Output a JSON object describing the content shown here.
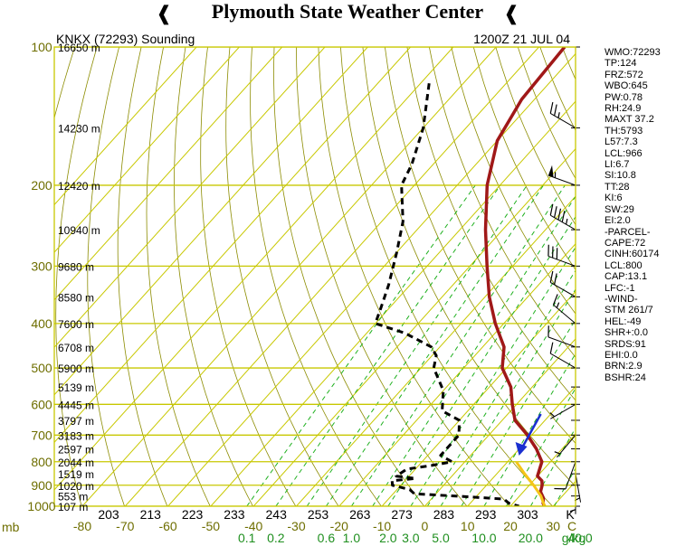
{
  "header": {
    "title": "Plymouth State Weather Center"
  },
  "chart_data": {
    "type": "skew-t",
    "station_label": "KNKX (72293) Sounding",
    "time_label": "1200Z 21 JUL 04",
    "pressure_ticks": [
      100,
      200,
      300,
      400,
      500,
      600,
      700,
      800,
      900,
      1000
    ],
    "pressure_unit": "mb",
    "height_labels": [
      {
        "p": 100,
        "label": "16650 m"
      },
      {
        "p": 150,
        "label": "14230 m"
      },
      {
        "p": 200,
        "label": "12420 m"
      },
      {
        "p": 250,
        "label": "10940 m"
      },
      {
        "p": 300,
        "label": "9680 m"
      },
      {
        "p": 350,
        "label": "8580 m"
      },
      {
        "p": 400,
        "label": "7600 m"
      },
      {
        "p": 450,
        "label": "6708 m"
      },
      {
        "p": 500,
        "label": "5900 m"
      },
      {
        "p": 550,
        "label": "5139 m"
      },
      {
        "p": 600,
        "label": "4445 m"
      },
      {
        "p": 650,
        "label": "3797 m"
      },
      {
        "p": 700,
        "label": "3183 m"
      },
      {
        "p": 750,
        "label": "2597 m"
      },
      {
        "p": 800,
        "label": "2044 m"
      },
      {
        "p": 850,
        "label": "1519 m"
      },
      {
        "p": 900,
        "label": "1020 m"
      },
      {
        "p": 950,
        "label": "553 m"
      },
      {
        "p": 1000,
        "label": "107 m"
      }
    ],
    "theta_labels": [
      "203",
      "213",
      "223",
      "233",
      "243",
      "253",
      "263",
      "273",
      "283",
      "293",
      "303"
    ],
    "theta_corner_label": "K",
    "temp_labels": [
      "-80",
      "-70",
      "-60",
      "-50",
      "-40",
      "-30",
      "-20",
      "-10",
      "0",
      "10",
      "20",
      "30",
      "C"
    ],
    "temp_values": [
      -80,
      -70,
      -60,
      -50,
      -40,
      -30,
      -20,
      -10,
      0,
      10,
      20,
      30
    ],
    "mixing_ratio_labels": [
      "0.1",
      "0.2",
      "0.6",
      "1.0",
      "2.0",
      "3.0",
      "5.0",
      "10.0",
      "20.0",
      "40.0",
      "g/kg"
    ],
    "mixing_ratio_values": [
      0.1,
      0.2,
      0.6,
      1.0,
      2.0,
      3.0,
      5.0,
      10.0,
      20.0,
      40.0
    ],
    "series": [
      {
        "name": "temperature",
        "color": "#a01818",
        "points": [
          [
            100,
            -64
          ],
          [
            130,
            -63
          ],
          [
            160,
            -60
          ],
          [
            200,
            -53
          ],
          [
            250,
            -44
          ],
          [
            300,
            -36
          ],
          [
            350,
            -29
          ],
          [
            400,
            -22
          ],
          [
            450,
            -15
          ],
          [
            500,
            -11
          ],
          [
            550,
            -5
          ],
          [
            600,
            -1
          ],
          [
            650,
            3
          ],
          [
            700,
            9
          ],
          [
            750,
            14
          ],
          [
            800,
            18
          ],
          [
            830,
            19
          ],
          [
            860,
            20
          ],
          [
            880,
            22
          ],
          [
            900,
            23
          ],
          [
            930,
            24
          ],
          [
            960,
            26
          ],
          [
            985,
            27
          ],
          [
            1000,
            28
          ]
        ]
      },
      {
        "name": "dewpoint",
        "color": "#000000",
        "points": [
          [
            120,
            -88
          ],
          [
            150,
            -80
          ],
          [
            180,
            -75
          ],
          [
            200,
            -73
          ],
          [
            240,
            -65
          ],
          [
            280,
            -60
          ],
          [
            330,
            -55
          ],
          [
            370,
            -52
          ],
          [
            400,
            -50
          ],
          [
            420,
            -41
          ],
          [
            450,
            -32
          ],
          [
            470,
            -29
          ],
          [
            500,
            -27
          ],
          [
            560,
            -20
          ],
          [
            620,
            -16
          ],
          [
            650,
            -10
          ],
          [
            700,
            -7
          ],
          [
            745,
            -7
          ],
          [
            775,
            -7
          ],
          [
            800,
            -3
          ],
          [
            815,
            -7
          ],
          [
            830,
            -12
          ],
          [
            860,
            -13
          ],
          [
            870,
            -8
          ],
          [
            880,
            -13
          ],
          [
            900,
            -12
          ],
          [
            920,
            -7
          ],
          [
            940,
            -5
          ],
          [
            950,
            5
          ],
          [
            965,
            17
          ],
          [
            985,
            19
          ],
          [
            1000,
            22
          ]
        ]
      },
      {
        "name": "parcel",
        "color": "#f5c518",
        "points": [
          [
            800,
            12
          ],
          [
            850,
            16.5
          ],
          [
            900,
            21
          ],
          [
            950,
            25
          ],
          [
            1000,
            28
          ]
        ]
      }
    ],
    "arrow_annotation": {
      "color": "#1a2fd0",
      "points_to_p": 790,
      "points_to_t": 11.5
    },
    "wind_barbs": [
      {
        "p": 150,
        "dir": 300,
        "speed": 25
      },
      {
        "p": 200,
        "dir": 290,
        "speed": 55
      },
      {
        "p": 250,
        "dir": 300,
        "speed": 45
      },
      {
        "p": 300,
        "dir": 290,
        "speed": 30
      },
      {
        "p": 350,
        "dir": 300,
        "speed": 20
      },
      {
        "p": 400,
        "dir": 310,
        "speed": 15
      },
      {
        "p": 450,
        "dir": 290,
        "speed": 10
      },
      {
        "p": 500,
        "dir": 300,
        "speed": 10
      },
      {
        "p": 600,
        "dir": 240,
        "speed": 5
      },
      {
        "p": 700,
        "dir": 220,
        "speed": 5
      },
      {
        "p": 800,
        "dir": 200,
        "speed": 10
      },
      {
        "p": 850,
        "dir": 170,
        "speed": 5
      },
      {
        "p": 900,
        "dir": 180,
        "speed": 5
      }
    ],
    "indices": [
      "WMO:72293",
      "TP:124",
      "FRZ:572",
      "WBO:645",
      "PW:0.78",
      "RH:24.9",
      "MAXT 37.2",
      "TH:5793",
      "L57:7.3",
      "LCL:966",
      "LI:6.7",
      "SI:10.8",
      "TT:28",
      "KI:6",
      "SW:29",
      "EI:2.0",
      "-PARCEL-",
      "CAPE:72",
      "CINH:60174",
      "LCL:800",
      "CAP:13.1",
      "LFC:-1",
      "-WIND-",
      "STM 261/7",
      "HEL:-49",
      "SHR+:0.0",
      "SRDS:91",
      "EHI:0.0",
      "BRN:2.9",
      "BSHR:24"
    ],
    "colors": {
      "isotherm": "#c8c800",
      "dry_adiabat": "#8c8c00",
      "mixing_ratio_line": "#1fb01f",
      "temp_axis_label": "#6e6e00",
      "mixing_ratio_label": "#1f8f1f"
    }
  }
}
